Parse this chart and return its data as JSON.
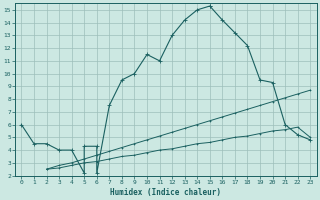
{
  "xlabel": "Humidex (Indice chaleur)",
  "bg_color": "#cce8e2",
  "grid_color": "#9dbfba",
  "line_color": "#1a6060",
  "xlim": [
    -0.5,
    23.5
  ],
  "ylim": [
    2,
    15.5
  ],
  "xticks": [
    0,
    1,
    2,
    3,
    4,
    5,
    6,
    7,
    8,
    9,
    10,
    11,
    12,
    13,
    14,
    15,
    16,
    17,
    18,
    19,
    20,
    21,
    22,
    23
  ],
  "yticks": [
    2,
    3,
    4,
    5,
    6,
    7,
    8,
    9,
    10,
    11,
    12,
    13,
    14,
    15
  ],
  "line1_x": [
    0,
    1,
    2,
    3,
    4,
    5,
    5,
    6,
    6,
    7,
    8,
    9,
    10,
    11,
    12,
    13,
    14,
    15,
    15,
    16,
    17,
    18,
    19,
    20,
    21,
    22,
    23
  ],
  "line1_y": [
    6.0,
    4.5,
    4.5,
    4.0,
    4.0,
    2.2,
    4.3,
    4.3,
    2.2,
    7.5,
    9.5,
    10.0,
    11.5,
    11.0,
    13.0,
    14.2,
    15.0,
    15.3,
    15.3,
    14.2,
    13.2,
    12.2,
    9.5,
    9.3,
    6.0,
    5.2,
    4.8
  ],
  "line2_x": [
    2,
    3,
    4,
    5,
    6,
    7,
    8,
    9,
    10,
    11,
    12,
    13,
    14,
    15,
    16,
    17,
    18,
    19,
    20,
    21,
    22,
    23
  ],
  "line2_y": [
    2.5,
    2.8,
    3.0,
    3.3,
    3.6,
    3.9,
    4.2,
    4.5,
    4.8,
    5.1,
    5.4,
    5.7,
    6.0,
    6.3,
    6.6,
    6.9,
    7.2,
    7.5,
    7.8,
    8.1,
    8.4,
    8.7
  ],
  "line3_x": [
    2,
    3,
    4,
    5,
    6,
    7,
    8,
    9,
    10,
    11,
    12,
    13,
    14,
    15,
    16,
    17,
    18,
    19,
    20,
    21,
    22,
    23
  ],
  "line3_y": [
    2.5,
    2.6,
    2.8,
    3.0,
    3.1,
    3.3,
    3.5,
    3.6,
    3.8,
    4.0,
    4.1,
    4.3,
    4.5,
    4.6,
    4.8,
    5.0,
    5.1,
    5.3,
    5.5,
    5.6,
    5.8,
    5.0
  ]
}
